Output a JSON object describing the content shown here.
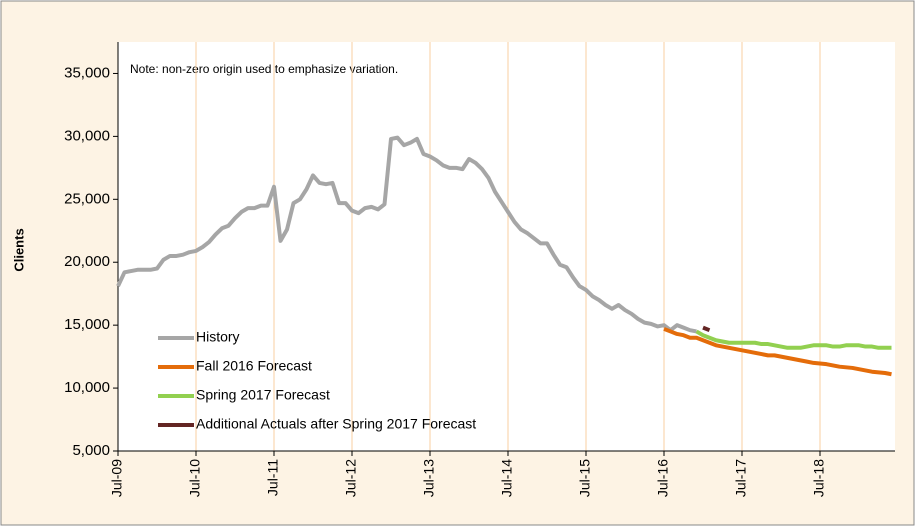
{
  "chart_data": {
    "type": "line",
    "y_label": "Clients",
    "annotation": "Note: non-zero origin used to emphasize variation.",
    "categories": [
      "Jul-09",
      null,
      null,
      null,
      null,
      null,
      null,
      null,
      null,
      null,
      null,
      null,
      "Jul-10",
      null,
      null,
      null,
      null,
      null,
      null,
      null,
      null,
      null,
      null,
      null,
      "Jul-11",
      null,
      null,
      null,
      null,
      null,
      null,
      null,
      null,
      null,
      null,
      null,
      "Jul-12",
      null,
      null,
      null,
      null,
      null,
      null,
      null,
      null,
      null,
      null,
      null,
      "Jul-13",
      null,
      null,
      null,
      null,
      null,
      null,
      null,
      null,
      null,
      null,
      null,
      "Jul-14",
      null,
      null,
      null,
      null,
      null,
      null,
      null,
      null,
      null,
      null,
      null,
      "Jul-15",
      null,
      null,
      null,
      null,
      null,
      null,
      null,
      null,
      null,
      null,
      null,
      "Jul-16",
      null,
      null,
      null,
      null,
      null,
      null,
      null,
      null,
      null,
      null,
      null,
      "Jul-17",
      null,
      null,
      null,
      null,
      null,
      null,
      null,
      null,
      null,
      null,
      null,
      "Jul-18",
      null,
      null,
      null,
      null,
      null,
      null,
      null,
      null,
      null,
      null,
      null
    ],
    "series": [
      {
        "name": "History",
        "color": "#a6a6a6",
        "values": [
          18100,
          19200,
          19300,
          19400,
          19400,
          19400,
          19500,
          20200,
          20500,
          20500,
          20600,
          20800,
          20900,
          21200,
          21600,
          22200,
          22700,
          22900,
          23500,
          24000,
          24300,
          24300,
          24500,
          24500,
          26000,
          21700,
          22600,
          24700,
          25000,
          25800,
          26900,
          26300,
          26200,
          26300,
          24700,
          24700,
          24100,
          23900,
          24300,
          24400,
          24200,
          24600,
          29800,
          29900,
          29300,
          29500,
          29800,
          28600,
          28400,
          28100,
          27700,
          27500,
          27500,
          27400,
          28200,
          27900,
          27400,
          26700,
          25600,
          24800,
          24000,
          23200,
          22600,
          22300,
          21900,
          21500,
          21500,
          20600,
          19800,
          19600,
          18800,
          18100,
          17800,
          17300,
          17000,
          16600,
          16300,
          16600,
          16200,
          15900,
          15500,
          15200,
          15100,
          14900,
          15000,
          14600,
          15000,
          14800,
          14600,
          14500,
          null,
          null,
          null,
          null,
          null,
          null,
          null,
          null,
          null,
          null,
          null,
          null,
          null,
          null,
          null,
          null,
          null,
          null,
          null,
          null,
          null,
          null,
          null,
          null,
          null,
          null,
          null,
          null,
          null,
          null
        ]
      },
      {
        "name": "Fall 2016 Forecast",
        "color": "#e46c0a",
        "values": [
          null,
          null,
          null,
          null,
          null,
          null,
          null,
          null,
          null,
          null,
          null,
          null,
          null,
          null,
          null,
          null,
          null,
          null,
          null,
          null,
          null,
          null,
          null,
          null,
          null,
          null,
          null,
          null,
          null,
          null,
          null,
          null,
          null,
          null,
          null,
          null,
          null,
          null,
          null,
          null,
          null,
          null,
          null,
          null,
          null,
          null,
          null,
          null,
          null,
          null,
          null,
          null,
          null,
          null,
          null,
          null,
          null,
          null,
          null,
          null,
          null,
          null,
          null,
          null,
          null,
          null,
          null,
          null,
          null,
          null,
          null,
          null,
          null,
          null,
          null,
          null,
          null,
          null,
          null,
          null,
          null,
          null,
          null,
          null,
          14700,
          14500,
          14300,
          14200,
          14000,
          14000,
          13800,
          13600,
          13400,
          13300,
          13200,
          13100,
          13000,
          12900,
          12800,
          12700,
          12600,
          12600,
          12500,
          12400,
          12300,
          12200,
          12100,
          12000,
          11950,
          11900,
          11800,
          11700,
          11650,
          11600,
          11500,
          11400,
          11300,
          11250,
          11200,
          11100
        ]
      },
      {
        "name": "Spring 2017 Forecast",
        "color": "#92d050",
        "values": [
          null,
          null,
          null,
          null,
          null,
          null,
          null,
          null,
          null,
          null,
          null,
          null,
          null,
          null,
          null,
          null,
          null,
          null,
          null,
          null,
          null,
          null,
          null,
          null,
          null,
          null,
          null,
          null,
          null,
          null,
          null,
          null,
          null,
          null,
          null,
          null,
          null,
          null,
          null,
          null,
          null,
          null,
          null,
          null,
          null,
          null,
          null,
          null,
          null,
          null,
          null,
          null,
          null,
          null,
          null,
          null,
          null,
          null,
          null,
          null,
          null,
          null,
          null,
          null,
          null,
          null,
          null,
          null,
          null,
          null,
          null,
          null,
          null,
          null,
          null,
          null,
          null,
          null,
          null,
          null,
          null,
          null,
          null,
          null,
          null,
          null,
          null,
          null,
          null,
          14500,
          14200,
          14000,
          13800,
          13700,
          13600,
          13600,
          13600,
          13600,
          13600,
          13500,
          13500,
          13400,
          13300,
          13200,
          13200,
          13200,
          13300,
          13400,
          13400,
          13400,
          13300,
          13300,
          13400,
          13400,
          13400,
          13300,
          13300,
          13200,
          13200,
          13200
        ]
      },
      {
        "name": "Additional Actuals after Spring 2017 Forecast",
        "color": "#632523",
        "values": [
          null,
          null,
          null,
          null,
          null,
          null,
          null,
          null,
          null,
          null,
          null,
          null,
          null,
          null,
          null,
          null,
          null,
          null,
          null,
          null,
          null,
          null,
          null,
          null,
          null,
          null,
          null,
          null,
          null,
          null,
          null,
          null,
          null,
          null,
          null,
          null,
          null,
          null,
          null,
          null,
          null,
          null,
          null,
          null,
          null,
          null,
          null,
          null,
          null,
          null,
          null,
          null,
          null,
          null,
          null,
          null,
          null,
          null,
          null,
          null,
          null,
          null,
          null,
          null,
          null,
          null,
          null,
          null,
          null,
          null,
          null,
          null,
          null,
          null,
          null,
          null,
          null,
          null,
          null,
          null,
          null,
          null,
          null,
          null,
          null,
          null,
          null,
          null,
          null,
          null,
          14800,
          14600,
          null,
          null,
          null,
          null,
          null,
          null,
          null,
          null,
          null,
          null,
          null,
          null,
          null,
          null,
          null,
          null,
          null,
          null,
          null,
          null,
          null,
          null,
          null,
          null,
          null,
          null,
          null,
          null
        ]
      }
    ],
    "ylim": [
      5000,
      37500
    ],
    "yticks": [
      {
        "value": 5000,
        "label": "5,000"
      },
      {
        "value": 10000,
        "label": "10,000"
      },
      {
        "value": 15000,
        "label": "15,000"
      },
      {
        "value": 20000,
        "label": "20,000"
      },
      {
        "value": 25000,
        "label": "25,000"
      },
      {
        "value": 30000,
        "label": "30,000"
      },
      {
        "value": 35000,
        "label": "35,000"
      }
    ],
    "grid": "vertical",
    "legend": "lower left"
  }
}
